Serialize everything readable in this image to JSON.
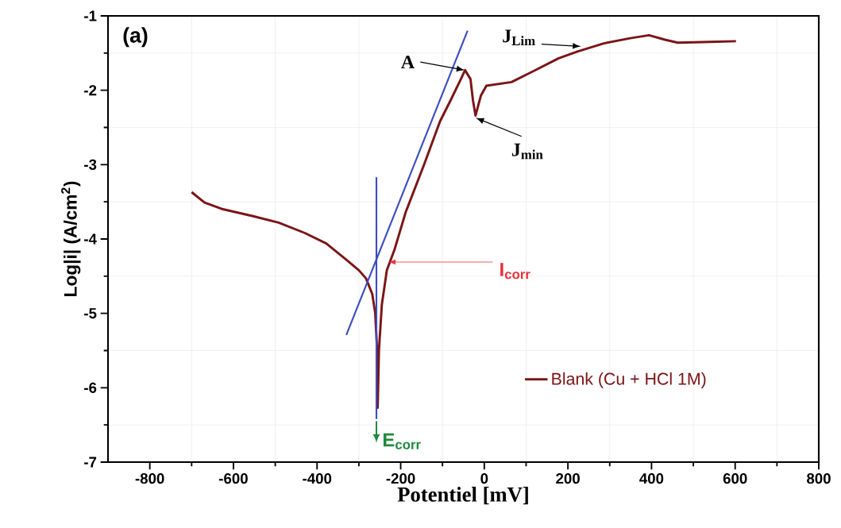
{
  "chart_data": {
    "type": "line",
    "xlabel": "Potentiel [mV]",
    "ylabel": "Log|i| (A/cm$^{2}$)",
    "xlim": [
      -900,
      800
    ],
    "ylim": [
      -7,
      -1
    ],
    "xticks": [
      -800,
      -600,
      -400,
      -200,
      0,
      200,
      400,
      600,
      800
    ],
    "yticks": [
      -7,
      -6,
      -5,
      -4,
      -3,
      -2,
      -1
    ],
    "grid": true,
    "legend": "bottom right",
    "marker": "none",
    "line_style": "solid",
    "series": [
      {
        "name": "Blank (Cu + HCl 1M)",
        "color": "#7b1416",
        "x": [
          -700,
          -669,
          -625,
          -555,
          -492,
          -429,
          -378,
          -330,
          -300,
          -283,
          -268,
          -261,
          -257,
          -255,
          -252,
          -245,
          -233,
          -214,
          -188,
          -144,
          -106,
          -81,
          -56,
          -46,
          -33,
          -27,
          -21,
          -8,
          5,
          65,
          115,
          178,
          223,
          286,
          349,
          394,
          432,
          463,
          539,
          602
        ],
        "values": [
          -3.37,
          -3.51,
          -3.6,
          -3.69,
          -3.78,
          -3.92,
          -4.06,
          -4.28,
          -4.42,
          -4.53,
          -4.74,
          -4.99,
          -5.42,
          -6.27,
          -5.5,
          -4.88,
          -4.42,
          -4.13,
          -3.64,
          -3.0,
          -2.42,
          -2.14,
          -1.85,
          -1.73,
          -1.85,
          -2.14,
          -2.34,
          -2.07,
          -1.94,
          -1.89,
          -1.75,
          -1.57,
          -1.48,
          -1.37,
          -1.3,
          -1.26,
          -1.32,
          -1.36,
          -1.35,
          -1.34
        ]
      },
      {
        "type": "line",
        "color": "#3b4cc0",
        "x": [
          -330,
          -40
        ],
        "values": [
          -5.29,
          -1.2
        ]
      },
      {
        "type": "line",
        "color": "#3b4cc0",
        "x": [
          -258,
          -258
        ],
        "values": [
          -3.17,
          -6.42
        ]
      }
    ],
    "annotations": [
      "(a)",
      {
        "text": "A",
        "x": -46,
        "y": -1.73
      },
      {
        "text": "J$_{Lim}$",
        "x": 232,
        "y": -1.41
      },
      {
        "text": "J$_{min}$",
        "x": -21,
        "y": -2.37
      },
      {
        "text": "I$_{corr}$",
        "x": -230,
        "y": -4.31
      },
      {
        "text": "E$_{corr}$",
        "x": -258,
        "y": -6.42
      }
    ]
  }
}
